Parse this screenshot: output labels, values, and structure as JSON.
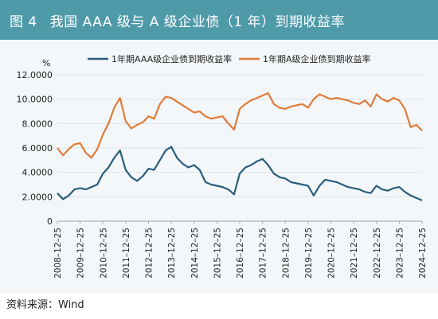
{
  "title": {
    "fig_no": "图 4",
    "text": "我国 AAA 级与 A 级企业债（1 年）到期收益率"
  },
  "source": "资料来源：Wind",
  "colors": {
    "title_bg": "#4f9aa9",
    "aaa": "#2a5d7c",
    "a": "#e07b39",
    "chart_bg": "#f3f7f9"
  },
  "chart_data": {
    "type": "line",
    "ylabel": "%",
    "ylim": [
      0,
      12
    ],
    "y_ticks": [
      "0",
      "2.0000",
      "4.0000",
      "6.0000",
      "8.0000",
      "10.0000",
      "12.0000"
    ],
    "x_ticks": [
      "2008–12–25",
      "2009–12–25",
      "2010–12–25",
      "2011–12–25",
      "2012–12–25",
      "2013–12–25",
      "2014–12–25",
      "2015–12–25",
      "2016–12–25",
      "2017–12–25",
      "2018–12–25",
      "2019–12–25",
      "2020–12–25",
      "2021–12–25",
      "2022–12–25",
      "2023–12–25",
      "2024–12–25"
    ],
    "legend_position": "top",
    "series": [
      {
        "name": "1年期AAA级企业债到期收益率",
        "color": "#2a5d7c",
        "x": [
          "2008-12",
          "2009-03",
          "2009-06",
          "2009-09",
          "2009-12",
          "2010-03",
          "2010-06",
          "2010-09",
          "2010-12",
          "2011-03",
          "2011-06",
          "2011-09",
          "2011-12",
          "2012-03",
          "2012-06",
          "2012-09",
          "2012-12",
          "2013-03",
          "2013-06",
          "2013-09",
          "2013-12",
          "2014-03",
          "2014-06",
          "2014-09",
          "2014-12",
          "2015-03",
          "2015-06",
          "2015-09",
          "2015-12",
          "2016-03",
          "2016-06",
          "2016-09",
          "2016-12",
          "2017-03",
          "2017-06",
          "2017-09",
          "2017-12",
          "2018-03",
          "2018-06",
          "2018-09",
          "2018-12",
          "2019-03",
          "2019-06",
          "2019-09",
          "2019-12",
          "2020-03",
          "2020-06",
          "2020-09",
          "2020-12",
          "2021-03",
          "2021-06",
          "2021-09",
          "2021-12",
          "2022-03",
          "2022-06",
          "2022-09",
          "2022-12",
          "2023-03",
          "2023-06",
          "2023-09",
          "2023-12",
          "2024-03",
          "2024-06",
          "2024-09",
          "2024-12"
        ],
        "values": [
          2.3,
          1.8,
          2.1,
          2.6,
          2.7,
          2.6,
          2.8,
          3.0,
          3.9,
          4.4,
          5.2,
          5.8,
          4.2,
          3.6,
          3.3,
          3.7,
          4.3,
          4.2,
          5.0,
          5.8,
          6.1,
          5.2,
          4.7,
          4.4,
          4.6,
          4.2,
          3.2,
          3.0,
          2.9,
          2.8,
          2.6,
          2.2,
          3.9,
          4.4,
          4.6,
          4.9,
          5.1,
          4.6,
          3.9,
          3.6,
          3.5,
          3.2,
          3.1,
          3.0,
          2.9,
          2.1,
          2.9,
          3.4,
          3.3,
          3.2,
          3.0,
          2.8,
          2.7,
          2.6,
          2.4,
          2.3,
          2.9,
          2.6,
          2.5,
          2.7,
          2.8,
          2.4,
          2.1,
          1.9,
          1.7
        ]
      },
      {
        "name": "1年期A级企业债到期收益率",
        "color": "#e07b39",
        "x": [
          "2008-12",
          "2009-03",
          "2009-06",
          "2009-09",
          "2009-12",
          "2010-03",
          "2010-06",
          "2010-09",
          "2010-12",
          "2011-03",
          "2011-06",
          "2011-09",
          "2011-12",
          "2012-03",
          "2012-06",
          "2012-09",
          "2012-12",
          "2013-03",
          "2013-06",
          "2013-09",
          "2013-12",
          "2014-03",
          "2014-06",
          "2014-09",
          "2014-12",
          "2015-03",
          "2015-06",
          "2015-09",
          "2015-12",
          "2016-03",
          "2016-06",
          "2016-09",
          "2016-12",
          "2017-03",
          "2017-06",
          "2017-09",
          "2017-12",
          "2018-03",
          "2018-06",
          "2018-09",
          "2018-12",
          "2019-03",
          "2019-06",
          "2019-09",
          "2019-12",
          "2020-03",
          "2020-06",
          "2020-09",
          "2020-12",
          "2021-03",
          "2021-06",
          "2021-09",
          "2021-12",
          "2022-03",
          "2022-06",
          "2022-09",
          "2022-12",
          "2023-03",
          "2023-06",
          "2023-09",
          "2023-12",
          "2024-03",
          "2024-06",
          "2024-09",
          "2024-12"
        ],
        "values": [
          6.0,
          5.4,
          5.9,
          6.3,
          6.4,
          5.6,
          5.2,
          5.9,
          7.1,
          8.0,
          9.3,
          10.1,
          8.2,
          7.6,
          7.9,
          8.1,
          8.6,
          8.4,
          9.6,
          10.2,
          10.1,
          9.8,
          9.5,
          9.2,
          8.9,
          9.0,
          8.6,
          8.4,
          8.5,
          8.6,
          8.0,
          7.5,
          9.2,
          9.6,
          9.9,
          10.1,
          10.3,
          10.5,
          9.6,
          9.3,
          9.2,
          9.4,
          9.5,
          9.6,
          9.3,
          10.0,
          10.4,
          10.2,
          10.0,
          10.1,
          10.0,
          9.9,
          9.7,
          9.6,
          9.9,
          9.4,
          10.4,
          10.0,
          9.8,
          10.1,
          9.9,
          9.2,
          7.7,
          7.9,
          7.4
        ]
      }
    ]
  }
}
